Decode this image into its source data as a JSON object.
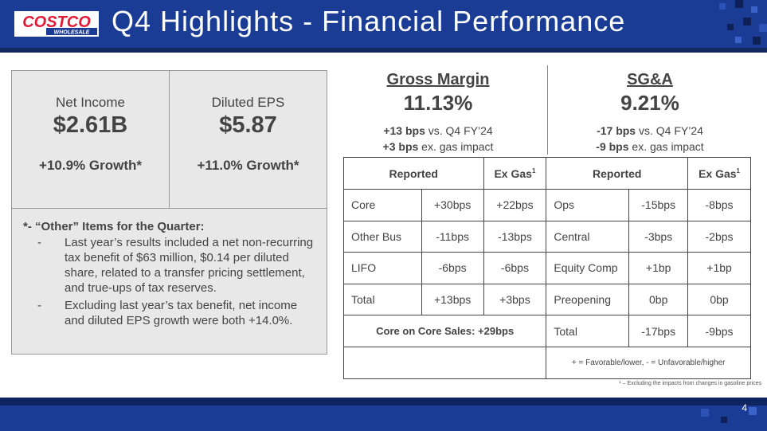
{
  "header": {
    "title": "Q4 Highlights - Financial Performance",
    "logo_text_top": "COSTCO",
    "logo_text_bottom": "WHOLESALE",
    "colors": {
      "bar": "#1a3c94",
      "logo_red": "#e31837"
    }
  },
  "metrics": [
    {
      "label": "Net Income",
      "value": "$2.61B",
      "growth": "+10.9% Growth*"
    },
    {
      "label": "Diluted EPS",
      "value": "$5.87",
      "growth": "+11.0% Growth*"
    }
  ],
  "notes": {
    "heading": "*- “Other” Items for the Quarter:",
    "items": [
      "Last year’s results included a net non-recurring tax benefit of $63 million, $0.14 per diluted share, related to a transfer pricing settlement, and true-ups of tax reserves.",
      "Excluding last year’s tax benefit, net income and diluted EPS growth were both +14.0%."
    ]
  },
  "gross_margin": {
    "title": "Gross Margin",
    "value": "11.13%",
    "line1_bold": "+13 bps",
    "line1_rest": " vs. Q4 FY’24",
    "line2_bold": "+3 bps",
    "line2_rest": " ex. gas impact"
  },
  "sga": {
    "title": "SG&A",
    "value": "9.21%",
    "line1_bold": "-17 bps",
    "line1_rest": " vs. Q4 FY’24",
    "line2_bold": "-9 bps",
    "line2_rest": " ex. gas impact"
  },
  "table": {
    "headers": {
      "reported": "Reported",
      "ex_gas": "Ex Gas",
      "sup": "1"
    },
    "gm_rows": [
      {
        "label": "Core",
        "reported": "+30bps",
        "ex_gas": "+22bps"
      },
      {
        "label": "Other Bus",
        "reported": "-11bps",
        "ex_gas": "-13bps"
      },
      {
        "label": "LIFO",
        "reported": "-6bps",
        "ex_gas": "-6bps"
      },
      {
        "label": "Total",
        "reported": "+13bps",
        "ex_gas": "+3bps"
      }
    ],
    "sga_rows": [
      {
        "label": "Ops",
        "reported": "-15bps",
        "ex_gas": "-8bps"
      },
      {
        "label": "Central",
        "reported": "-3bps",
        "ex_gas": "-2bps"
      },
      {
        "label": "Equity Comp",
        "reported": "+1bp",
        "ex_gas": "+1bp"
      },
      {
        "label": "Preopening",
        "reported": "0bp",
        "ex_gas": "0bp"
      },
      {
        "label": "Total",
        "reported": "-17bps",
        "ex_gas": "-9bps"
      }
    ],
    "core_on_core": "Core on Core Sales: +29bps",
    "legend": "+ = Favorable/lower, - = Unfavorable/higher"
  },
  "footnote": "¹ – Excluding the impacts from changes in gasoline prices",
  "page_number": "4"
}
